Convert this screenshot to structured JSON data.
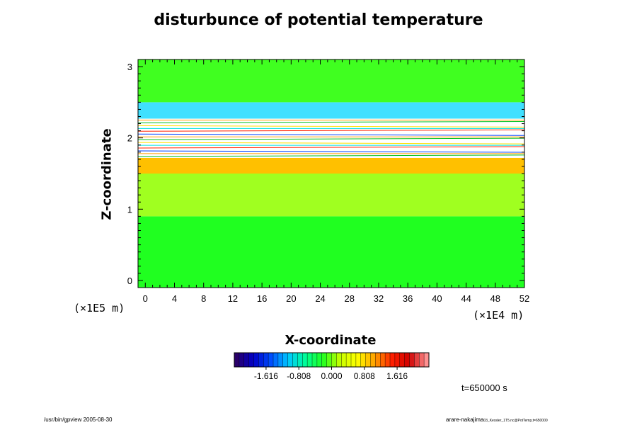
{
  "chart_data": {
    "type": "heatmap",
    "title": "disturbunce of potential temperature",
    "xlabel": "X-coordinate",
    "ylabel": "Z-coordinate",
    "x_unit": "(×1E4 m)",
    "y_unit": "(×1E5 m)",
    "xlim": [
      -1,
      52
    ],
    "ylim": [
      -0.1,
      3.1
    ],
    "x_ticks": [
      0,
      4,
      8,
      12,
      16,
      20,
      24,
      28,
      32,
      36,
      40,
      44,
      48,
      52
    ],
    "y_ticks": [
      0,
      1,
      2,
      3
    ],
    "colorbar": {
      "ticks": [
        -1.616,
        -0.808,
        0.0,
        0.808,
        1.616
      ],
      "tick_labels": [
        "-1.616",
        "-0.808",
        "0.000",
        "0.808",
        "1.616"
      ],
      "range": [
        -2.4,
        2.4
      ],
      "colors": [
        "#2a006a",
        "#0000c8",
        "#0050ff",
        "#00c8ff",
        "#00ff96",
        "#20ff20",
        "#c8ff00",
        "#ffff00",
        "#ffa000",
        "#ff2000",
        "#d00000",
        "#ff9090"
      ]
    },
    "layers": [
      {
        "z_from": -0.1,
        "z_to": 0.9,
        "value": 0.0,
        "description_color": "#20ff20"
      },
      {
        "z_from": 0.9,
        "z_to": 1.5,
        "value": 0.5,
        "description_color": "#a0ff20"
      },
      {
        "z_from": 1.5,
        "z_to": 1.72,
        "value": 1.0,
        "description_color": "#ffc000"
      },
      {
        "z_from": 1.72,
        "z_to": 2.27,
        "value": null,
        "description_color": "#ffffff"
      },
      {
        "z_from": 2.27,
        "z_to": 2.5,
        "value": -0.4,
        "description_color": "#40e0ff"
      },
      {
        "z_from": 2.5,
        "z_to": 3.1,
        "value": 0.2,
        "description_color": "#40ff20"
      }
    ],
    "annotations": {
      "time": "t=650000 s",
      "footer_left": "/usr/bin/gpview 2005-08-30",
      "footer_right": "arare-nakajima",
      "footer_right_small": "03_Kessler_1T5.nc@PotTemp,t=650000"
    }
  }
}
